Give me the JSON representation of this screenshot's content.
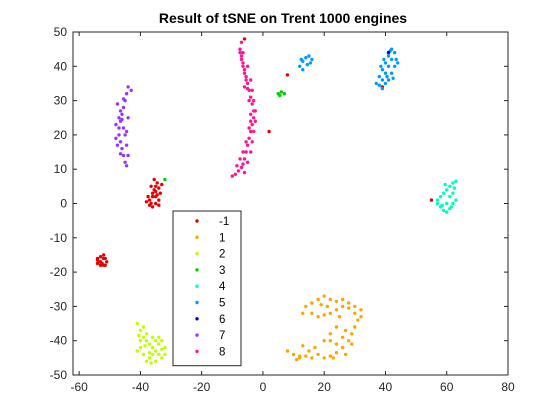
{
  "chart_data": {
    "type": "scatter",
    "title": "Result of tSNE on Trent 1000 engines",
    "xlabel": "",
    "ylabel": "",
    "xlim": [
      -62,
      80
    ],
    "ylim": [
      -50,
      50
    ],
    "x_ticks": [
      -60,
      -40,
      -20,
      0,
      20,
      40,
      60,
      80
    ],
    "y_ticks": [
      -50,
      -40,
      -30,
      -20,
      -10,
      0,
      10,
      20,
      30,
      40,
      50
    ],
    "x_tick_labels": [
      "-60",
      "-40",
      "-20",
      "0",
      "20",
      "40",
      "60",
      "80"
    ],
    "y_tick_labels": [
      "-50",
      "-40",
      "-30",
      "-20",
      "-10",
      "0",
      "10",
      "20",
      "30",
      "40",
      "50"
    ],
    "grid": false,
    "legend_position": "lower-left-center",
    "series": [
      {
        "name": "-1",
        "color": "#e60000",
        "points": [
          [
            -54,
            -16.5
          ],
          [
            -53,
            -17
          ],
          [
            -52,
            -18
          ],
          [
            -54,
            -17.5
          ],
          [
            -52,
            -16
          ],
          [
            -53,
            -15.5
          ],
          [
            -51,
            -17
          ],
          [
            -54,
            -16
          ],
          [
            -52,
            -15
          ],
          [
            -53,
            -18
          ],
          [
            -51.5,
            -16
          ],
          [
            -53.5,
            -17
          ],
          [
            -52.5,
            -17.5
          ],
          [
            -51.5,
            -18
          ],
          [
            -38,
            0.5
          ],
          [
            -37,
            1
          ],
          [
            -36,
            2
          ],
          [
            -35.5,
            4
          ],
          [
            -35,
            5
          ],
          [
            -36,
            3
          ],
          [
            -37,
            -0.5
          ],
          [
            -36.5,
            0
          ],
          [
            -35,
            2
          ],
          [
            -34,
            4.5
          ],
          [
            -34.5,
            6
          ],
          [
            -35.5,
            7
          ],
          [
            -34,
            1
          ],
          [
            -33.5,
            3
          ],
          [
            -36,
            -1
          ],
          [
            -35,
            0
          ],
          [
            -34.5,
            2.5
          ],
          [
            -36.5,
            5
          ],
          [
            -33,
            5.5
          ],
          [
            -34,
            -0.5
          ],
          [
            -37.5,
            2
          ],
          [
            -35,
            3.5
          ],
          [
            2,
            21
          ],
          [
            8,
            37.5
          ],
          [
            -6,
            48
          ],
          [
            39,
            34
          ],
          [
            55,
            1
          ]
        ]
      },
      {
        "name": "1",
        "color": "#ffa500",
        "points": [
          [
            10,
            -44
          ],
          [
            12,
            -45
          ],
          [
            14,
            -44.5
          ],
          [
            16,
            -45
          ],
          [
            18,
            -44
          ],
          [
            20,
            -45
          ],
          [
            22,
            -44.5
          ],
          [
            24,
            -43.5
          ],
          [
            26,
            -42
          ],
          [
            28,
            -40
          ],
          [
            29,
            -38
          ],
          [
            30,
            -36
          ],
          [
            31,
            -34
          ],
          [
            30,
            -32
          ],
          [
            28,
            -30.5
          ],
          [
            26,
            -30
          ],
          [
            24,
            -31
          ],
          [
            22,
            -32
          ],
          [
            20,
            -32.5
          ],
          [
            18,
            -33
          ],
          [
            16,
            -32
          ],
          [
            14,
            -30
          ],
          [
            13,
            -32
          ],
          [
            16,
            -29
          ],
          [
            18,
            -28
          ],
          [
            20,
            -27
          ],
          [
            22,
            -28
          ],
          [
            24,
            -28.5
          ],
          [
            26,
            -28
          ],
          [
            28,
            -29
          ],
          [
            30,
            -30
          ],
          [
            32,
            -31
          ],
          [
            32,
            -33
          ],
          [
            24,
            -36
          ],
          [
            22,
            -38
          ],
          [
            20,
            -40
          ],
          [
            22,
            -40
          ],
          [
            24,
            -41
          ],
          [
            26,
            -39
          ],
          [
            27,
            -37
          ],
          [
            17,
            -42
          ],
          [
            15,
            -43
          ],
          [
            11,
            -45.5
          ],
          [
            8,
            -43
          ],
          [
            13,
            -41.5
          ],
          [
            27,
            -44
          ],
          [
            21,
            -30
          ],
          [
            19,
            -29.5
          ],
          [
            25,
            -33
          ],
          [
            29,
            -41
          ],
          [
            12,
            -44.5
          ],
          [
            23,
            -45
          ]
        ]
      },
      {
        "name": "2",
        "color": "#bfff00",
        "points": [
          [
            -41,
            -35
          ],
          [
            -40,
            -37
          ],
          [
            -39,
            -39
          ],
          [
            -38,
            -40
          ],
          [
            -37,
            -41
          ],
          [
            -36,
            -42
          ],
          [
            -35,
            -43
          ],
          [
            -34,
            -44
          ],
          [
            -33,
            -45
          ],
          [
            -32,
            -44
          ],
          [
            -32,
            -42
          ],
          [
            -33,
            -40
          ],
          [
            -34,
            -39
          ],
          [
            -35,
            -40
          ],
          [
            -36,
            -44
          ],
          [
            -37,
            -45
          ],
          [
            -38,
            -46
          ],
          [
            -39,
            -44
          ],
          [
            -40,
            -42
          ],
          [
            -41,
            -43
          ],
          [
            -40,
            -40
          ],
          [
            -39,
            -36
          ],
          [
            -38,
            -38
          ],
          [
            -36,
            -39
          ],
          [
            -35,
            -46
          ],
          [
            -34,
            -41
          ],
          [
            -37,
            -43.5
          ],
          [
            -38.5,
            -41.5
          ],
          [
            -40.5,
            -38.5
          ],
          [
            -33,
            -42.5
          ],
          [
            -36.5,
            -46.5
          ]
        ]
      },
      {
        "name": "3",
        "color": "#00cc00",
        "points": [
          [
            5,
            32
          ],
          [
            6,
            32.5
          ],
          [
            7,
            32
          ],
          [
            5.5,
            31.5
          ],
          [
            -32,
            7
          ]
        ]
      },
      {
        "name": "4",
        "color": "#00ffc0",
        "points": [
          [
            57,
            0
          ],
          [
            58,
            -1
          ],
          [
            59,
            -2
          ],
          [
            60,
            -2.5
          ],
          [
            61,
            -1.5
          ],
          [
            62,
            0
          ],
          [
            63,
            1
          ],
          [
            62,
            3
          ],
          [
            61,
            5
          ],
          [
            62,
            6
          ],
          [
            63,
            6.5
          ],
          [
            60,
            4
          ],
          [
            59,
            3
          ],
          [
            58,
            2
          ],
          [
            57,
            1
          ],
          [
            60,
            0
          ],
          [
            61,
            2
          ],
          [
            58.5,
            -0.5
          ],
          [
            62.5,
            4.5
          ],
          [
            59.5,
            5.5
          ],
          [
            61.5,
            -1
          ]
        ]
      },
      {
        "name": "5",
        "color": "#0099ff",
        "points": [
          [
            12,
            40
          ],
          [
            13,
            41.5
          ],
          [
            14,
            42.5
          ],
          [
            15,
            43
          ],
          [
            16,
            42
          ],
          [
            14.5,
            40.5
          ],
          [
            13,
            39
          ],
          [
            15.5,
            41
          ],
          [
            12.5,
            42
          ],
          [
            38,
            34.5
          ],
          [
            39,
            36
          ],
          [
            40,
            38
          ],
          [
            41,
            40
          ],
          [
            42,
            42
          ],
          [
            43,
            44
          ],
          [
            42,
            45
          ],
          [
            41,
            43
          ],
          [
            40,
            41
          ],
          [
            39,
            39
          ],
          [
            38,
            37
          ],
          [
            37,
            35
          ],
          [
            40,
            35
          ],
          [
            41,
            36
          ],
          [
            42,
            38
          ],
          [
            43,
            40
          ],
          [
            43.5,
            42
          ],
          [
            41.5,
            44.5
          ],
          [
            39.5,
            42
          ],
          [
            38.5,
            40
          ],
          [
            40.5,
            37
          ],
          [
            42.5,
            36.5
          ],
          [
            39,
            33.5
          ],
          [
            44,
            41
          ]
        ]
      },
      {
        "name": "6",
        "color": "#0000cc",
        "points": [
          [
            41,
            44
          ]
        ]
      },
      {
        "name": "7",
        "color": "#9933ff",
        "points": [
          [
            -44,
            34
          ],
          [
            -44.5,
            32
          ],
          [
            -45,
            30
          ],
          [
            -45.5,
            28
          ],
          [
            -46,
            26
          ],
          [
            -46.5,
            24
          ],
          [
            -47,
            22
          ],
          [
            -47,
            20
          ],
          [
            -46.5,
            18
          ],
          [
            -46,
            16
          ],
          [
            -45.5,
            14
          ],
          [
            -45,
            12
          ],
          [
            -44.5,
            11
          ],
          [
            -44,
            14
          ],
          [
            -44.5,
            17
          ],
          [
            -45,
            20
          ],
          [
            -45.5,
            22
          ],
          [
            -46,
            24.5
          ],
          [
            -46.5,
            27
          ],
          [
            -47.5,
            29
          ],
          [
            -48,
            23
          ],
          [
            -48,
            19
          ],
          [
            -47.5,
            17
          ],
          [
            -46.5,
            14.5
          ],
          [
            -45.5,
            30.5
          ],
          [
            -44,
            25
          ],
          [
            -44.5,
            21
          ],
          [
            -43,
            33
          ],
          [
            -47,
            25
          ]
        ]
      },
      {
        "name": "8",
        "color": "#ff1493",
        "points": [
          [
            -7,
            47
          ],
          [
            -7.5,
            45
          ],
          [
            -7,
            43
          ],
          [
            -6.5,
            41
          ],
          [
            -6,
            39
          ],
          [
            -5.5,
            37
          ],
          [
            -5,
            35
          ],
          [
            -4.5,
            33
          ],
          [
            -4,
            31
          ],
          [
            -3.5,
            29
          ],
          [
            -3,
            27
          ],
          [
            -3,
            25
          ],
          [
            -3.5,
            23
          ],
          [
            -4,
            21
          ],
          [
            -4.5,
            19
          ],
          [
            -5,
            17
          ],
          [
            -5.5,
            15
          ],
          [
            -6,
            13
          ],
          [
            -6.5,
            11.5
          ],
          [
            -7,
            10.5
          ],
          [
            -8,
            9.5
          ],
          [
            -9,
            8.5
          ],
          [
            -10,
            8
          ],
          [
            -8.5,
            11
          ],
          [
            -7.5,
            13
          ],
          [
            -6.5,
            15
          ],
          [
            -5.5,
            18
          ],
          [
            -4.5,
            22
          ],
          [
            -4,
            26
          ],
          [
            -4.5,
            30
          ],
          [
            -5,
            33.5
          ],
          [
            -5.5,
            36
          ],
          [
            -6,
            38
          ],
          [
            -6.5,
            40
          ],
          [
            -7,
            42
          ],
          [
            -7.5,
            44
          ],
          [
            -6.5,
            44
          ],
          [
            -5,
            40
          ],
          [
            -4,
            36
          ],
          [
            -3.5,
            33
          ],
          [
            -3,
            30
          ],
          [
            -2.5,
            27
          ],
          [
            -2.5,
            24
          ],
          [
            -3,
            21
          ],
          [
            -3.5,
            18
          ],
          [
            -4,
            15
          ],
          [
            -5,
            12
          ],
          [
            -6,
            9
          ],
          [
            -4,
            24
          ],
          [
            -6,
            34
          ]
        ]
      }
    ]
  }
}
